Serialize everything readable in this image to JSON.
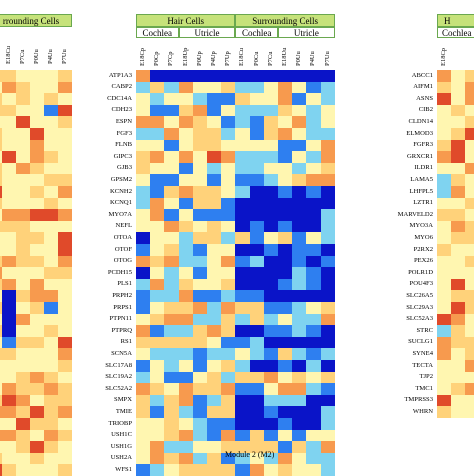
{
  "left_panel": {
    "header_partial": "rrounding Cells",
    "columns": [
      "E18Cu",
      "P7Cu",
      "P0Uu",
      "P4Uu",
      "P7Uu"
    ]
  },
  "middle_panel": {
    "groups": [
      {
        "label": "Hair Cells",
        "sub": [
          "Cochlea",
          "Utricle"
        ]
      },
      {
        "label": "Surrounding Cells",
        "sub": [
          "Cochlea",
          "Utricle"
        ]
      }
    ],
    "columns": [
      "E18Cp",
      "P0Cp",
      "P7Cp",
      "E18Up",
      "P0Up",
      "P4Up",
      "P7Up",
      "E18Cu",
      "P0Cu",
      "P7Cu",
      "E18Uu",
      "P0Uu",
      "P4Uu",
      "P7Uu"
    ],
    "genes": [
      "ATP1A3",
      "CABP2",
      "CDC14A",
      "CDH23",
      "ESPN",
      "FGF3",
      "FLNB",
      "GIPC3",
      "GJB3",
      "GPSM2",
      "KCNH2",
      "KCNQ1",
      "MYO7A",
      "NEFL",
      "OTOA",
      "OTOF",
      "OTOG",
      "PCDH15",
      "PLS1",
      "PRPH2",
      "PRPS1",
      "PTPN11",
      "PTPRQ",
      "RS1",
      "SCN5A",
      "SLC17A8",
      "SLC19A2",
      "SLC52A2",
      "SMPX",
      "TMIE",
      "TRIOBP",
      "USH1C",
      "USH1G",
      "USH2A",
      "WFS1"
    ],
    "caption": "Module 2 (M2)"
  },
  "right_panel": {
    "header_partial": "H",
    "sub_partial": "Cochlea",
    "columns": [
      "E18Cp"
    ],
    "genes": [
      "ABCC1",
      "AIFM1",
      "ASNS",
      "CIB2",
      "CLDN14",
      "ELMOD3",
      "FGFR3",
      "GRXCR1",
      "ILDR1",
      "LAMA5",
      "LHFPL5",
      "LZTR1",
      "MARVELD2",
      "MYO3A",
      "MYO6",
      "P2RX2",
      "PEX26",
      "POLR1D",
      "POU4F3",
      "SLC26A5",
      "SLC29A3",
      "SLC52A3",
      "STRC",
      "SUCLG1",
      "SYNE4",
      "TECTA",
      "TJP2",
      "TMC1",
      "TMPRSS3",
      "WHRN"
    ]
  },
  "colors": {
    "scale": [
      "#0a14c8",
      "#2e7ff0",
      "#7fd3f0",
      "#fff6b0",
      "#ffd27a",
      "#f79a4e",
      "#e04a2a"
    ],
    "header_green": "#c6e27a"
  }
}
